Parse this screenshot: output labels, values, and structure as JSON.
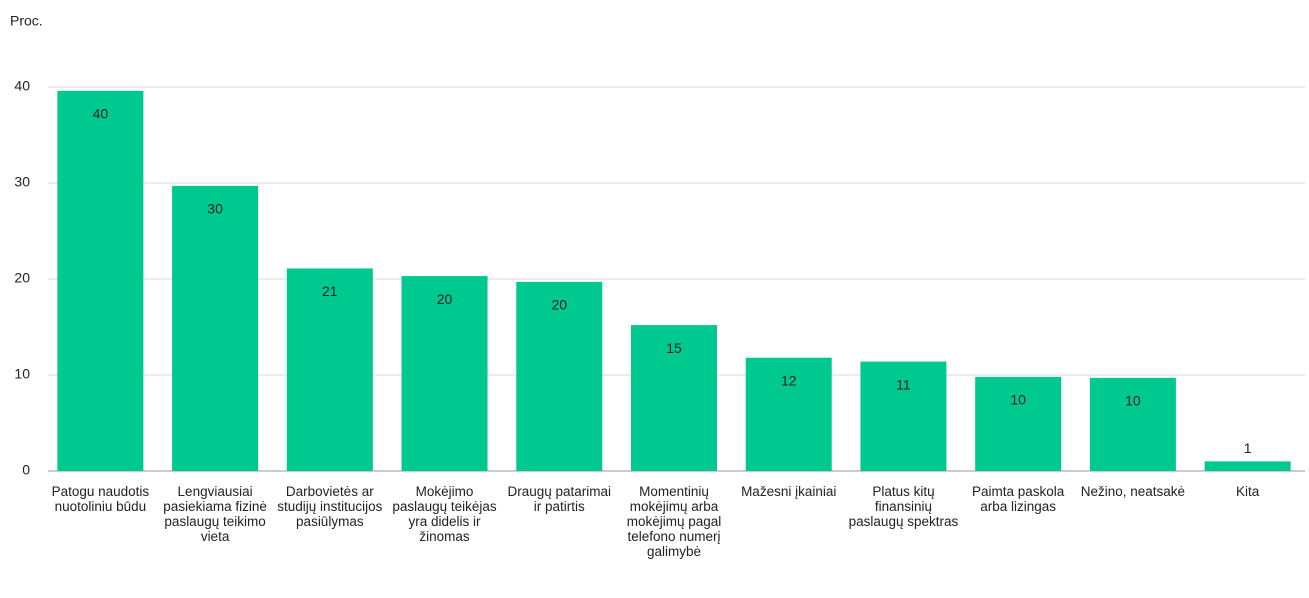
{
  "chart_data": {
    "type": "bar",
    "y_label": "Proc.",
    "categories": [
      "Patogu naudotis nuotoliniu būdu",
      "Lengviausiai pasiekiama fizinė paslaugų teikimo vieta",
      "Darbovietės ar studijų institucijos pasiūlymas",
      "Mokėjimo paslaugų teikėjas yra didelis ir žinomas",
      "Draugų patarimai ir patirtis",
      "Momentinių mokėjimų arba mokėjimų pagal telefono numerį galimybė",
      "Mažesni įkainiai",
      "Platus kitų finansinių paslaugų spektras",
      "Paimta paskola arba lizingas",
      "Nežino, neatsakė",
      "Kita"
    ],
    "values": [
      39.6,
      29.7,
      21.1,
      20.3,
      19.7,
      15.2,
      11.8,
      11.4,
      9.8,
      9.7,
      1.0
    ],
    "value_labels": [
      "40",
      "30",
      "21",
      "20",
      "20",
      "15",
      "12",
      "11",
      "10",
      "10",
      "1"
    ],
    "color": "#00c98f",
    "ylim": [
      0,
      40
    ],
    "yticks": [
      0,
      10,
      20,
      30,
      40
    ],
    "grid": true
  }
}
